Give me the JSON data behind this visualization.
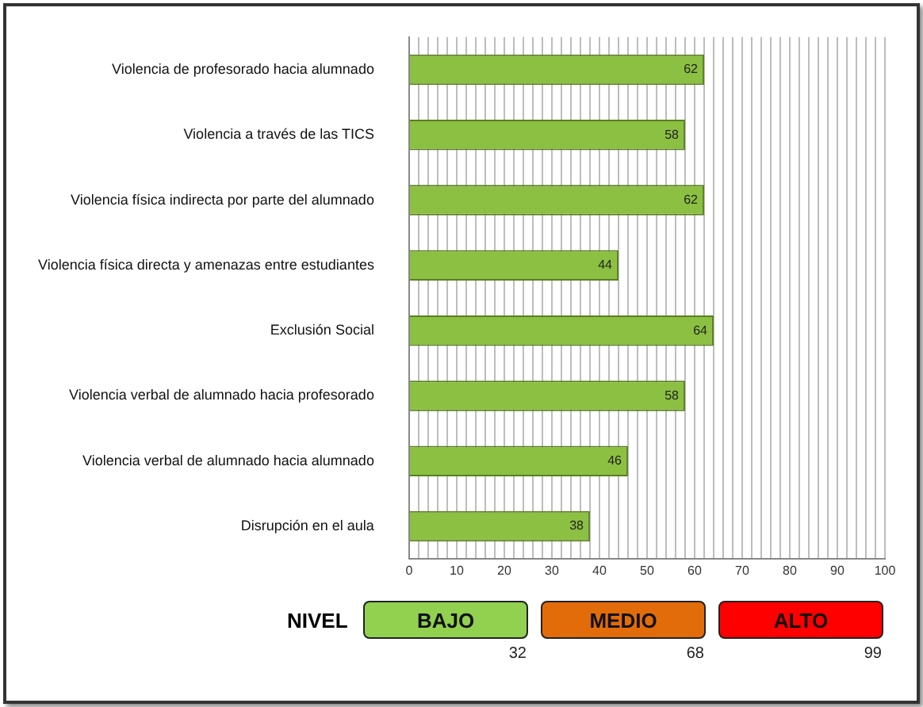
{
  "chart_data": {
    "type": "bar",
    "orientation": "horizontal",
    "categories": [
      "Violencia de profesorado hacia alumnado",
      "Violencia a través de las TICS",
      "Violencia física indirecta por parte del alumnado",
      "Violencia física directa y amenazas entre estudiantes",
      "Exclusión Social",
      "Violencia verbal de alumnado hacia profesorado",
      "Violencia verbal de alumnado hacia alumnado",
      "Disrupción en el aula"
    ],
    "values": [
      62,
      58,
      62,
      44,
      64,
      58,
      46,
      38
    ],
    "color": "#8cc043",
    "data_labels": true,
    "xlim": [
      0,
      100
    ],
    "xticks": [
      0,
      {
        "value": 2,
        "label": null
      },
      {
        "value": 4,
        "label": null
      },
      {
        "value": 6,
        "label": null
      },
      {
        "value": 8,
        "label": null
      },
      10,
      {
        "value": 12,
        "label": null
      },
      {
        "value": 14,
        "label": null
      },
      {
        "value": 16,
        "label": null
      },
      {
        "value": 18,
        "label": null
      },
      20,
      {
        "value": 22,
        "label": null
      },
      {
        "value": 24,
        "label": null
      },
      {
        "value": 26,
        "label": null
      },
      {
        "value": 28,
        "label": null
      },
      30,
      {
        "value": 32,
        "label": null
      },
      {
        "value": 34,
        "label": null
      },
      {
        "value": 36,
        "label": null
      },
      {
        "value": 38,
        "label": null
      },
      40,
      {
        "value": 42,
        "label": null
      },
      {
        "value": 44,
        "label": null
      },
      {
        "value": 46,
        "label": null
      },
      {
        "value": 48,
        "label": null
      },
      50,
      {
        "value": 52,
        "label": null
      },
      {
        "value": 54,
        "label": null
      },
      {
        "value": 56,
        "label": null
      },
      {
        "value": 58,
        "label": null
      },
      60,
      {
        "value": 62,
        "label": null
      },
      {
        "value": 64,
        "label": null
      },
      {
        "value": 66,
        "label": null
      },
      {
        "value": 68,
        "label": null
      },
      70,
      {
        "value": 72,
        "label": null
      },
      {
        "value": 74,
        "label": null
      },
      {
        "value": 76,
        "label": null
      },
      {
        "value": 78,
        "label": null
      },
      80,
      {
        "value": 82,
        "label": null
      },
      {
        "value": 84,
        "label": null
      },
      {
        "value": 86,
        "label": null
      },
      {
        "value": 88,
        "label": null
      },
      90,
      {
        "value": 92,
        "label": null
      },
      {
        "value": 94,
        "label": null
      },
      {
        "value": 96,
        "label": null
      },
      {
        "value": 98,
        "label": null
      },
      100
    ],
    "grid": "x",
    "legend": false,
    "annotations": [
      "NIVEL",
      "BAJO",
      "MEDIO",
      "ALTO",
      "32",
      "68",
      "99"
    ]
  }
}
